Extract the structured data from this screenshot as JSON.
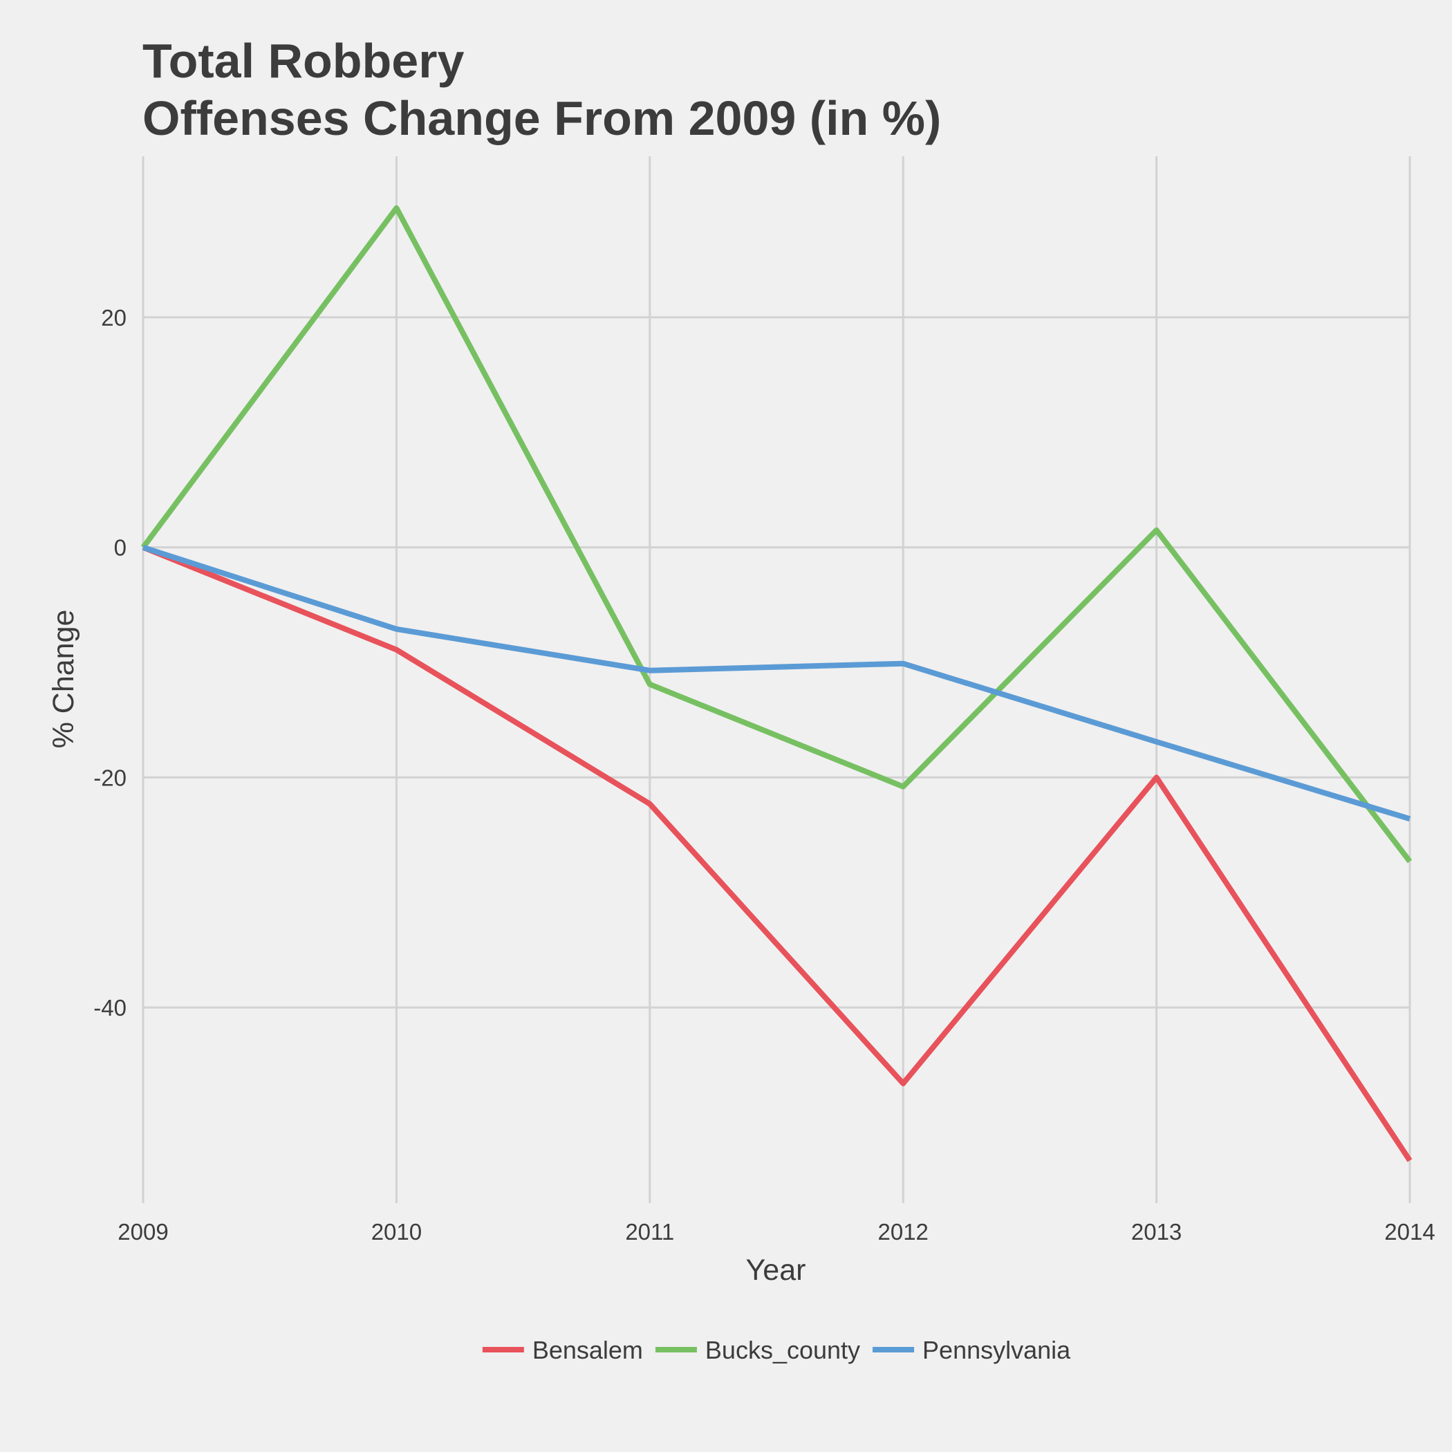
{
  "chart_data": {
    "type": "line",
    "title_line1": "Total Robbery",
    "title_line2": "Offenses Change From 2009 (in %)",
    "xlabel": "Year",
    "ylabel": "% Change",
    "x": [
      2009,
      2010,
      2011,
      2012,
      2013,
      2014
    ],
    "x_tick_labels": [
      "2009",
      "2010",
      "2011",
      "2012",
      "2013",
      "2014"
    ],
    "y_ticks": [
      20,
      0,
      -20,
      -40
    ],
    "y_tick_labels": [
      "20",
      "0",
      "-20",
      "-40"
    ],
    "ylim": [
      -57,
      34
    ],
    "grid": true,
    "legend_position": "bottom",
    "series": [
      {
        "name": "Bensalem",
        "color": "#e8525b",
        "values": [
          0,
          -8.9,
          -22.3,
          -46.6,
          -20.0,
          -53.3
        ]
      },
      {
        "name": "Bucks_county",
        "color": "#77c062",
        "values": [
          0,
          29.5,
          -11.9,
          -20.8,
          1.5,
          -27.3
        ]
      },
      {
        "name": "Pennsylvania",
        "color": "#5b9bd5",
        "values": [
          0,
          -7.1,
          -10.7,
          -10.1,
          -16.9,
          -23.6
        ]
      }
    ]
  }
}
